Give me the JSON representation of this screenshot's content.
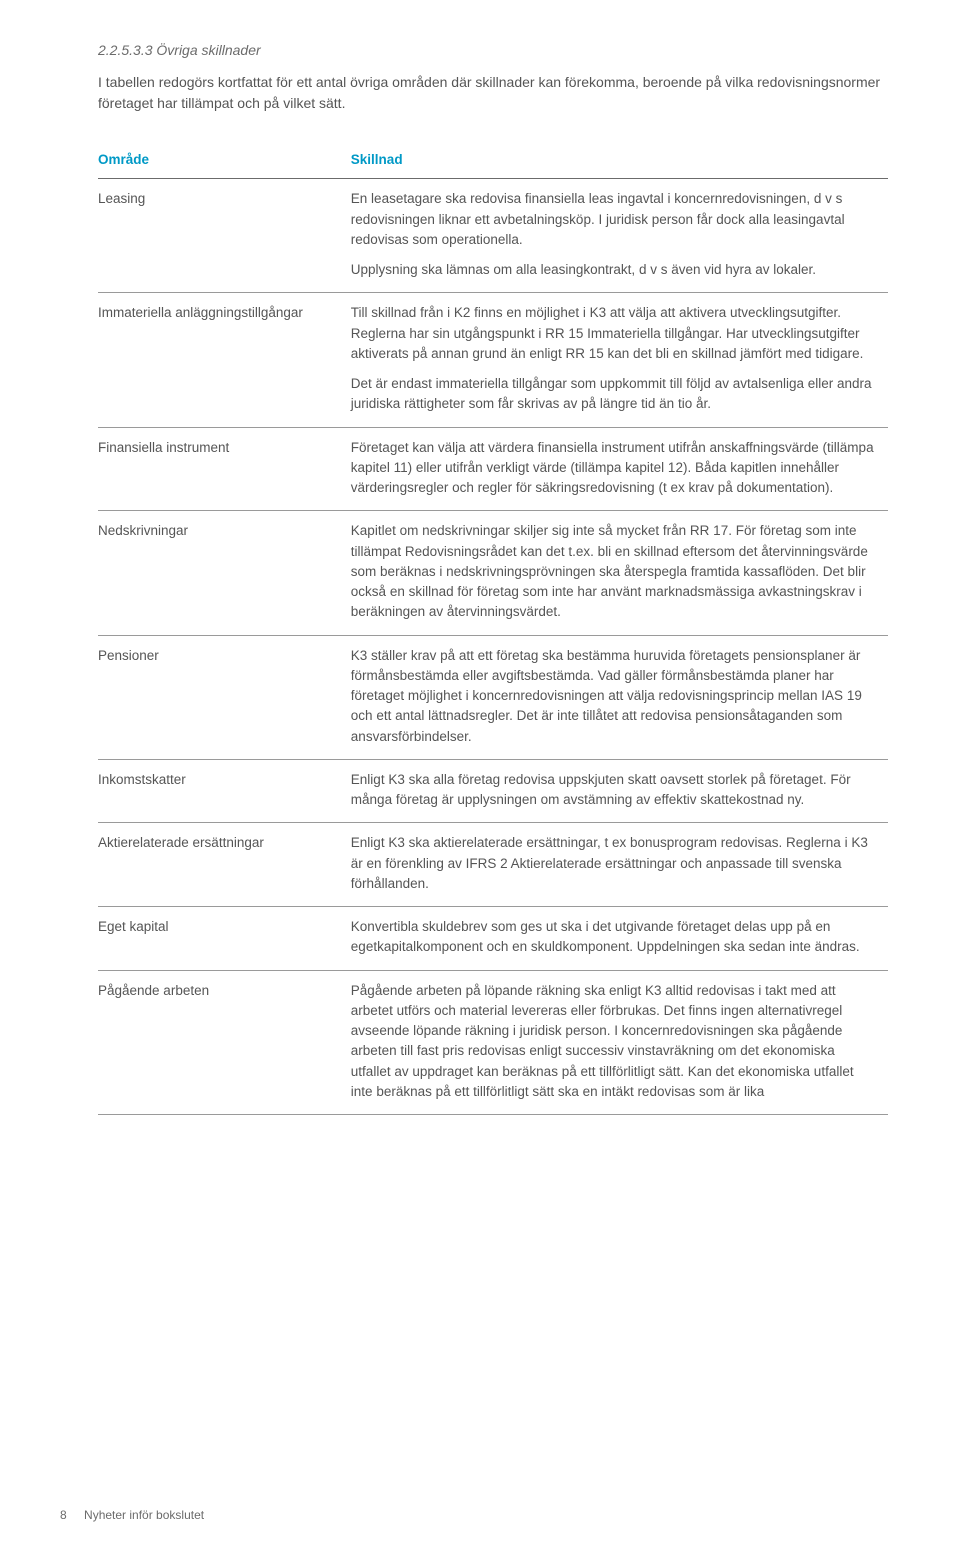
{
  "section": {
    "number": "2.2.5.3.3",
    "title": "Övriga skillnader"
  },
  "intro": "I tabellen redogörs kortfattat för ett antal övriga områden där skillnader kan förekomma, beroende på vilka redovisningsnormer företaget har tillämpat och på vilket sätt.",
  "table": {
    "header_left": "Område",
    "header_right": "Skillnad",
    "rows": [
      {
        "label": "Leasing",
        "paras": [
          "En leasetagare ska redovisa finansiella leas ingavtal i koncernredovisningen, d v s redovisningen liknar ett avbetalningsköp. I juridisk person får dock alla leasingavtal redovisas som operationella.",
          "Upplysning ska lämnas om alla leasingkontrakt, d v s även vid hyra av lokaler."
        ]
      },
      {
        "label": "Immateriella anläggningstillgångar",
        "paras": [
          "Till skillnad från i K2 finns en möjlighet i K3 att välja att aktivera utvecklingsutgifter. Reglerna har sin utgångspunkt i RR 15 Immateriella tillgångar. Har utvecklingsutgifter aktiverats på annan grund än enligt RR 15 kan det bli en skillnad jämfört med tidigare.",
          "Det är endast immateriella tillgångar som uppkommit till följd av avtalsenliga eller andra juridiska rättigheter som får skrivas av på längre tid än tio år."
        ]
      },
      {
        "label": "Finansiella instrument",
        "paras": [
          "Företaget kan välja att värdera finansiella instrument utifrån anskaffningsvärde (tillämpa kapitel 11) eller utifrån verkligt värde (tillämpa kapitel 12). Båda kapitlen innehåller värderingsregler och regler för säkringsredovisning (t ex krav på dokumentation)."
        ]
      },
      {
        "label": "Nedskrivningar",
        "paras": [
          "Kapitlet om nedskrivningar skiljer sig inte så mycket från RR 17. För företag som inte tillämpat Redovisningsrådet kan det t.ex. bli en skillnad eftersom det återvinningsvärde som beräknas i nedskrivningsprövningen ska återspegla framtida kassaflöden. Det blir också en skillnad för företag som inte har använt marknadsmässiga avkastningskrav i beräkningen av återvinningsvärdet."
        ]
      },
      {
        "label": "Pensioner",
        "paras": [
          "K3 ställer krav på att ett företag ska bestämma huruvida företagets pensionsplaner är förmånsbestämda eller avgiftsbestämda. Vad gäller förmånsbestämda planer har företaget möjlighet i koncernredovisningen att välja redovisningsprincip mellan IAS 19 och ett antal lättnadsregler. Det är inte tillåtet att redovisa pensionsåtaganden som ansvarsförbindelser."
        ]
      },
      {
        "label": "Inkomstskatter",
        "paras": [
          "Enligt K3 ska alla företag redovisa uppskjuten skatt oavsett storlek på företaget. För många företag är upplysningen om avstämning av effektiv skattekostnad ny."
        ]
      },
      {
        "label": "Aktierelaterade ersättningar",
        "paras": [
          "Enligt K3 ska aktierelaterade ersättningar, t ex bonusprogram redovisas. Reglerna i K3 är en förenkling av IFRS 2 Aktierelaterade ersättningar och anpassade till svenska förhållanden."
        ]
      },
      {
        "label": "Eget kapital",
        "paras": [
          "Konvertibla skuldebrev som ges ut ska i det utgivande företaget delas upp på en egetkapitalkomponent och en skuldkomponent. Uppdelningen ska sedan inte ändras."
        ]
      },
      {
        "label": "Pågående arbeten",
        "paras": [
          "Pågående arbeten på löpande räkning ska enligt K3 alltid redovisas i takt med att arbetet utförs och material levereras eller förbrukas. Det finns ingen alternativregel avseende löpande räkning i juridisk person. I koncernredovisningen ska pågående arbeten till fast pris redovisas enligt successiv vinstavräkning om det ekonomiska utfallet av uppdraget kan beräknas på ett tillförlitligt sätt. Kan det ekonomiska utfallet inte beräknas på ett tillförlitligt sätt ska en intäkt redovisas som är lika"
        ]
      }
    ]
  },
  "footer": {
    "page_number": "8",
    "doc_title": "Nyheter inför bokslutet"
  }
}
